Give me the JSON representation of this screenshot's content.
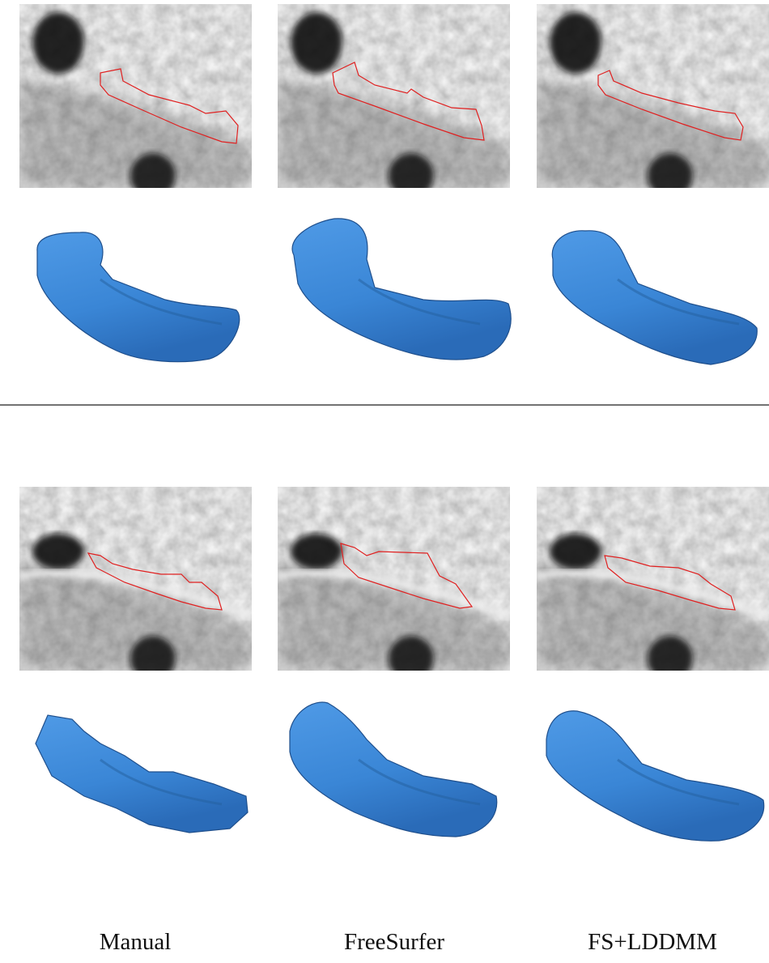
{
  "columns": [
    {
      "label": "Manual"
    },
    {
      "label": "FreeSurfer"
    },
    {
      "label": "FS+LDDMM"
    }
  ]
}
